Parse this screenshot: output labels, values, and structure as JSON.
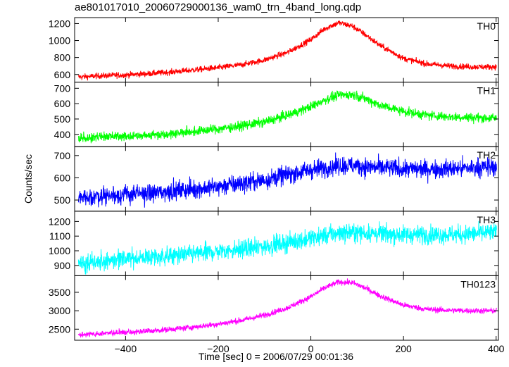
{
  "title": "ae801017010_20060729000136_wam0_trn_4band_long.qdp",
  "chart_data": {
    "type": "line",
    "title": "ae801017010_20060729000136_wam0_trn_4band_long.qdp",
    "xlabel": "Time [sec] 0 = 2006/07/29 00:01:36",
    "ylabel": "Counts/sec",
    "xlim": [
      -510,
      405
    ],
    "xticks": [
      -400,
      -200,
      0,
      200,
      400
    ],
    "xtick_labels": [
      "−400",
      "−200",
      "0",
      "200",
      "400"
    ],
    "grid": false,
    "panels": [
      {
        "name": "TH0",
        "color": "#ff0000",
        "ylim": [
          510,
          1270
        ],
        "yticks": [
          600,
          800,
          1000,
          1200
        ],
        "x": [
          -500,
          -450,
          -400,
          -350,
          -300,
          -250,
          -200,
          -150,
          -100,
          -50,
          0,
          30,
          60,
          90,
          120,
          150,
          200,
          250,
          300,
          350,
          400
        ],
        "y": [
          570,
          585,
          595,
          610,
          630,
          655,
          680,
          715,
          770,
          860,
          1010,
          1140,
          1210,
          1170,
          1060,
          940,
          790,
          725,
          700,
          690,
          690
        ],
        "noise": 25
      },
      {
        "name": "TH1",
        "color": "#00ff00",
        "ylim": [
          320,
          740
        ],
        "yticks": [
          400,
          500,
          600,
          700
        ],
        "x": [
          -500,
          -450,
          -400,
          -350,
          -300,
          -250,
          -200,
          -150,
          -100,
          -50,
          0,
          30,
          60,
          90,
          120,
          150,
          200,
          250,
          300,
          350,
          400
        ],
        "y": [
          375,
          385,
          390,
          395,
          405,
          420,
          435,
          455,
          480,
          525,
          580,
          625,
          655,
          660,
          630,
          590,
          550,
          525,
          515,
          510,
          505
        ],
        "noise": 22
      },
      {
        "name": "TH2",
        "color": "#0000ff",
        "ylim": [
          450,
          740
        ],
        "yticks": [
          500,
          600,
          700
        ],
        "x": [
          -500,
          -450,
          -400,
          -350,
          -300,
          -250,
          -200,
          -150,
          -100,
          -50,
          0,
          30,
          60,
          90,
          120,
          150,
          200,
          250,
          300,
          350,
          400
        ],
        "y": [
          510,
          520,
          525,
          530,
          540,
          550,
          560,
          575,
          590,
          615,
          635,
          645,
          655,
          655,
          650,
          645,
          640,
          640,
          640,
          645,
          650
        ],
        "noise": 30
      },
      {
        "name": "TH3",
        "color": "#00ffff",
        "ylim": [
          830,
          1270
        ],
        "yticks": [
          900,
          1000,
          1100,
          1200
        ],
        "x": [
          -500,
          -450,
          -400,
          -350,
          -300,
          -250,
          -200,
          -150,
          -100,
          -50,
          0,
          30,
          60,
          90,
          120,
          150,
          200,
          250,
          300,
          350,
          400
        ],
        "y": [
          920,
          930,
          945,
          955,
          965,
          980,
          995,
          1010,
          1030,
          1055,
          1085,
          1105,
          1120,
          1125,
          1120,
          1115,
          1110,
          1110,
          1110,
          1115,
          1125
        ],
        "noise": 45
      },
      {
        "name": "TH0123",
        "color": "#ff00ff",
        "ylim": [
          2200,
          3950
        ],
        "yticks": [
          2500,
          3000,
          3500
        ],
        "x": [
          -500,
          -450,
          -400,
          -350,
          -300,
          -250,
          -200,
          -150,
          -100,
          -50,
          0,
          30,
          60,
          90,
          120,
          150,
          200,
          250,
          300,
          350,
          400
        ],
        "y": [
          2350,
          2380,
          2420,
          2450,
          2500,
          2560,
          2640,
          2740,
          2880,
          3080,
          3380,
          3620,
          3780,
          3760,
          3600,
          3400,
          3150,
          3040,
          3010,
          3000,
          3000
        ],
        "noise": 55
      }
    ]
  }
}
